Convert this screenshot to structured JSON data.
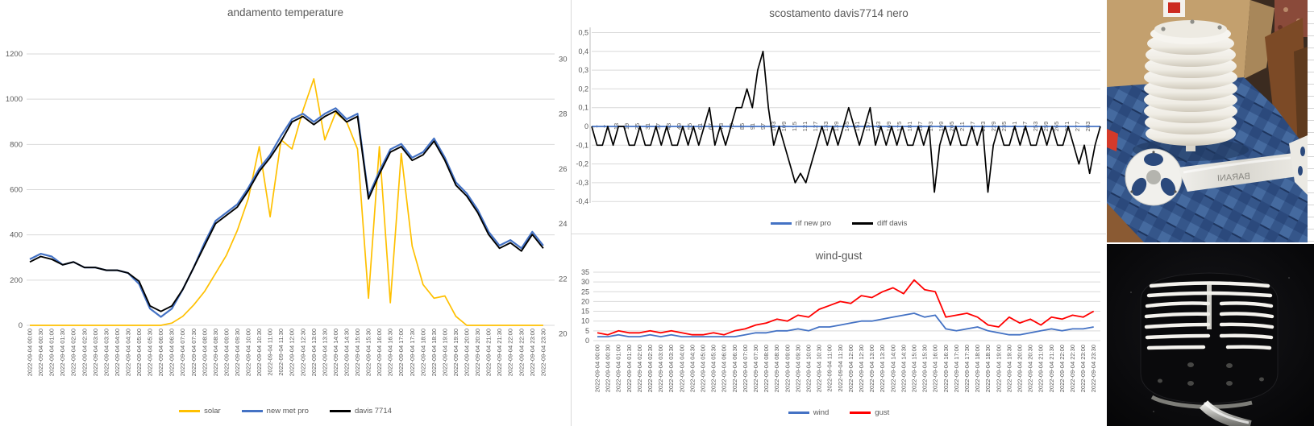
{
  "theme": {
    "grid_color": "#d9d9d9",
    "axis_text_color": "#595959",
    "background": "#ffffff"
  },
  "chart_data": [
    {
      "id": "andamento-temperature",
      "type": "line",
      "title": "andamento temperature",
      "grid": true,
      "legend_position": "bottom",
      "left_axis": {
        "min": 0,
        "max": 1200,
        "ticks": [
          "0",
          "200",
          "400",
          "600",
          "800",
          "1000",
          "1200"
        ]
      },
      "right_axis": {
        "min": 20,
        "max": 30,
        "ticks": [
          "20",
          "22",
          "24",
          "26",
          "28",
          "30"
        ]
      },
      "categories": [
        "2022-09-04 00:00",
        "2022-09-04 00:30",
        "2022-09-04 01:00",
        "2022-09-04 01:30",
        "2022-09-04 02:00",
        "2022-09-04 02:30",
        "2022-09-04 03:00",
        "2022-09-04 03:30",
        "2022-09-04 04:00",
        "2022-09-04 04:30",
        "2022-09-04 05:00",
        "2022-09-04 05:30",
        "2022-09-04 06:00",
        "2022-09-04 06:30",
        "2022-09-04 07:00",
        "2022-09-04 07:30",
        "2022-09-04 08:00",
        "2022-09-04 08:30",
        "2022-09-04 09:00",
        "2022-09-04 09:30",
        "2022-09-04 10:00",
        "2022-09-04 10:30",
        "2022-09-04 11:00",
        "2022-09-04 11:30",
        "2022-09-04 12:00",
        "2022-09-04 12:30",
        "2022-09-04 13:00",
        "2022-09-04 13:30",
        "2022-09-04 14:00",
        "2022-09-04 14:30",
        "2022-09-04 15:00",
        "2022-09-04 15:30",
        "2022-09-04 16:00",
        "2022-09-04 16:30",
        "2022-09-04 17:00",
        "2022-09-04 17:30",
        "2022-09-04 18:00",
        "2022-09-04 18:30",
        "2022-09-04 19:00",
        "2022-09-04 19:30",
        "2022-09-04 20:00",
        "2022-09-04 20:30",
        "2022-09-04 21:00",
        "2022-09-04 21:30",
        "2022-09-04 22:00",
        "2022-09-04 22:30",
        "2022-09-04 23:00",
        "2022-09-04 23:30"
      ],
      "series": [
        {
          "name": "solar",
          "color": "#FFC000",
          "axis": "left",
          "values": [
            0,
            0,
            0,
            0,
            0,
            0,
            0,
            0,
            0,
            0,
            0,
            0,
            0,
            10,
            40,
            90,
            150,
            230,
            310,
            420,
            560,
            790,
            480,
            820,
            780,
            950,
            1090,
            820,
            940,
            900,
            780,
            120,
            790,
            100,
            760,
            350,
            180,
            120,
            130,
            40,
            0,
            0,
            0,
            0,
            0,
            0,
            0,
            0
          ]
        },
        {
          "name": "new met pro",
          "color": "#4472C4",
          "axis": "right",
          "values": [
            22.7,
            22.9,
            22.8,
            22.5,
            22.6,
            22.4,
            22.4,
            22.3,
            22.3,
            22.2,
            21.8,
            20.9,
            20.6,
            20.9,
            21.6,
            22.4,
            23.3,
            24.1,
            24.4,
            24.7,
            25.3,
            26.0,
            26.5,
            27.2,
            27.8,
            28.0,
            27.7,
            28.0,
            28.2,
            27.8,
            28.0,
            25.0,
            25.9,
            26.7,
            26.9,
            26.4,
            26.6,
            27.1,
            26.4,
            25.5,
            25.1,
            24.5,
            23.7,
            23.2,
            23.4,
            23.1,
            23.7,
            23.2
          ]
        },
        {
          "name": "davis 7714",
          "color": "#000000",
          "axis": "right",
          "values": [
            22.6,
            22.8,
            22.7,
            22.5,
            22.6,
            22.4,
            22.4,
            22.3,
            22.3,
            22.2,
            21.9,
            21.0,
            20.8,
            21.0,
            21.6,
            22.4,
            23.2,
            24.0,
            24.3,
            24.6,
            25.2,
            25.9,
            26.4,
            27.0,
            27.7,
            27.9,
            27.6,
            27.9,
            28.1,
            27.7,
            27.9,
            24.9,
            25.8,
            26.6,
            26.8,
            26.3,
            26.5,
            27.0,
            26.3,
            25.4,
            25.0,
            24.4,
            23.6,
            23.1,
            23.3,
            23.0,
            23.6,
            23.1
          ]
        }
      ]
    },
    {
      "id": "scostamento-davis7714-nero",
      "type": "line",
      "title": "scostamento davis7714 nero",
      "grid": true,
      "legend_position": "bottom",
      "y_axis": {
        "min": -0.5,
        "max": 0.5,
        "ticks": [
          "0,5",
          "0,4",
          "0,3",
          "0,2",
          "0,1",
          "0",
          "-0,1",
          "-0,2",
          "-0,3",
          "-0,4"
        ]
      },
      "x_tick_labels": [
        "1",
        "7",
        "13",
        "19",
        "25",
        "31",
        "37",
        "43",
        "49",
        "55",
        "61",
        "67",
        "73",
        "79",
        "85",
        "91",
        "97",
        "103",
        "109",
        "115",
        "121",
        "127",
        "133",
        "139",
        "145",
        "151",
        "157",
        "163",
        "169",
        "175",
        "181",
        "187",
        "193",
        "199",
        "205",
        "211",
        "217",
        "223",
        "229",
        "235",
        "241",
        "247",
        "253",
        "259",
        "265",
        "271",
        "277",
        "283"
      ],
      "series": [
        {
          "name": "rif new pro",
          "color": "#4472C4",
          "constant": 0
        },
        {
          "name": "diff davis",
          "color": "#000000",
          "values": [
            0,
            -0.1,
            -0.1,
            0,
            -0.1,
            0,
            0,
            -0.1,
            -0.1,
            0,
            -0.1,
            -0.1,
            0,
            -0.1,
            0,
            -0.1,
            -0.1,
            0,
            -0.1,
            0,
            -0.1,
            0,
            0.1,
            -0.1,
            0,
            -0.1,
            0,
            0.1,
            0.1,
            0.2,
            0.1,
            0.3,
            0.4,
            0.1,
            -0.1,
            0,
            -0.1,
            -0.2,
            -0.3,
            -0.25,
            -0.3,
            -0.2,
            -0.1,
            0,
            -0.1,
            0,
            -0.1,
            0,
            0.1,
            0,
            -0.1,
            0,
            0.1,
            -0.1,
            0,
            -0.1,
            0,
            -0.1,
            0,
            -0.1,
            -0.1,
            0,
            -0.1,
            0,
            -0.35,
            -0.1,
            0,
            -0.1,
            0,
            -0.1,
            -0.1,
            0,
            -0.1,
            0,
            -0.35,
            -0.1,
            0,
            -0.1,
            -0.1,
            0,
            -0.1,
            0,
            -0.1,
            -0.1,
            0,
            -0.1,
            0,
            -0.1,
            -0.1,
            0,
            -0.1,
            -0.2,
            -0.1,
            -0.25,
            -0.1,
            0
          ]
        }
      ]
    },
    {
      "id": "wind-gust",
      "type": "line",
      "title": "wind-gust",
      "grid": true,
      "legend_position": "bottom",
      "y_axis": {
        "min": 0,
        "max": 35,
        "ticks": [
          "0",
          "5",
          "10",
          "15",
          "20",
          "25",
          "30",
          "35"
        ]
      },
      "categories": [
        "2022-09-04 00:00",
        "2022-09-04 00:30",
        "2022-09-04 01:00",
        "2022-09-04 01:30",
        "2022-09-04 02:00",
        "2022-09-04 02:30",
        "2022-09-04 03:00",
        "2022-09-04 03:30",
        "2022-09-04 04:00",
        "2022-09-04 04:30",
        "2022-09-04 05:00",
        "2022-09-04 05:30",
        "2022-09-04 06:00",
        "2022-09-04 06:30",
        "2022-09-04 07:00",
        "2022-09-04 07:30",
        "2022-09-04 08:00",
        "2022-09-04 08:30",
        "2022-09-04 09:00",
        "2022-09-04 09:30",
        "2022-09-04 10:00",
        "2022-09-04 10:30",
        "2022-09-04 11:00",
        "2022-09-04 11:30",
        "2022-09-04 12:00",
        "2022-09-04 12:30",
        "2022-09-04 13:00",
        "2022-09-04 13:30",
        "2022-09-04 14:00",
        "2022-09-04 14:30",
        "2022-09-04 15:00",
        "2022-09-04 15:30",
        "2022-09-04 16:00",
        "2022-09-04 16:30",
        "2022-09-04 17:00",
        "2022-09-04 17:30",
        "2022-09-04 18:00",
        "2022-09-04 18:30",
        "2022-09-04 19:00",
        "2022-09-04 19:30",
        "2022-09-04 20:00",
        "2022-09-04 20:30",
        "2022-09-04 21:00",
        "2022-09-04 21:30",
        "2022-09-04 22:00",
        "2022-09-04 22:30",
        "2022-09-04 23:00",
        "2022-09-04 23:30"
      ],
      "series": [
        {
          "name": "wind",
          "color": "#4472C4",
          "values": [
            2,
            2,
            3,
            2,
            2,
            3,
            2,
            3,
            2,
            2,
            2,
            2,
            2,
            2,
            3,
            4,
            4,
            5,
            5,
            6,
            5,
            7,
            7,
            8,
            9,
            10,
            10,
            11,
            12,
            13,
            14,
            12,
            13,
            6,
            5,
            6,
            7,
            5,
            4,
            3,
            3,
            4,
            5,
            6,
            5,
            6,
            6,
            7
          ]
        },
        {
          "name": "gust",
          "color": "#FF0000",
          "values": [
            4,
            3,
            5,
            4,
            4,
            5,
            4,
            5,
            4,
            3,
            3,
            4,
            3,
            5,
            6,
            8,
            9,
            11,
            10,
            13,
            12,
            16,
            18,
            20,
            19,
            23,
            22,
            25,
            27,
            24,
            31,
            26,
            25,
            12,
            13,
            14,
            12,
            8,
            7,
            12,
            9,
            11,
            8,
            12,
            11,
            13,
            12,
            15
          ]
        }
      ]
    }
  ],
  "photos": {
    "top": {
      "description": "white multi-plate radiation shield with metal mounting bracket on blue tablecloth, cardboard box behind, wooden chair at right",
      "bracket_text": "BARANI"
    },
    "bottom": {
      "description": "black louvered radiation shield with white slit gaps on curved metal arm, dark background"
    }
  }
}
